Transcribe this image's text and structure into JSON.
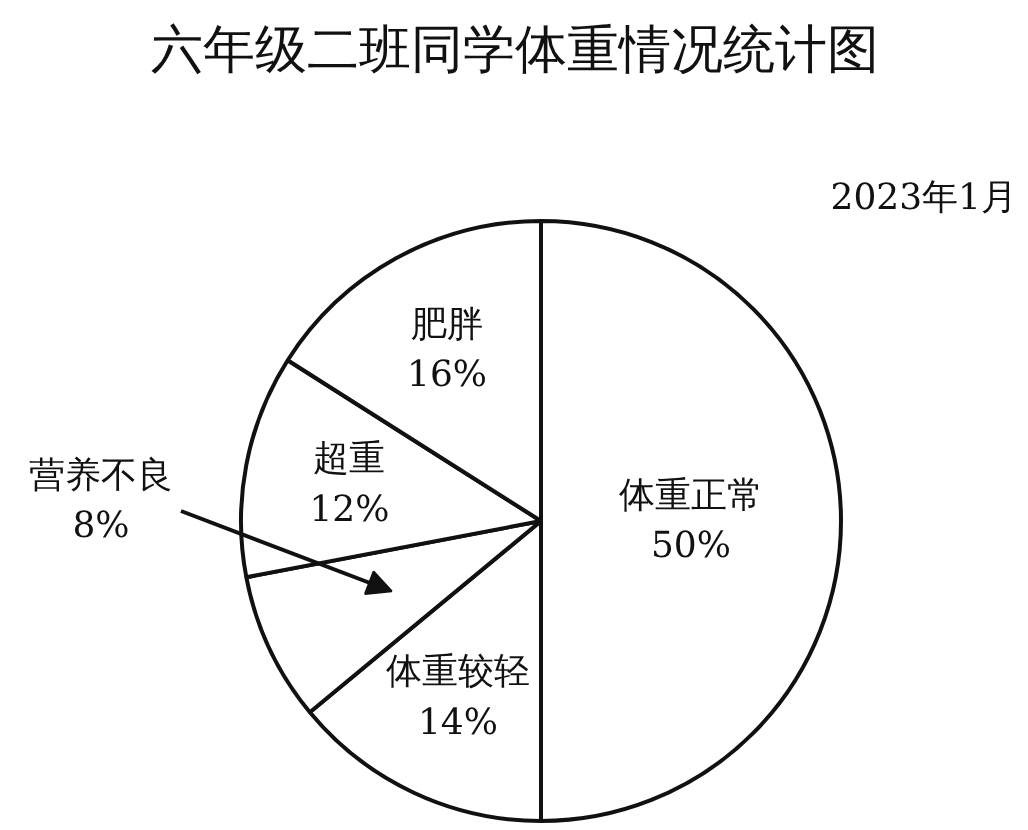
{
  "chart_data": {
    "type": "pie",
    "title": "六年级二班同学体重情况统计图",
    "annotations": [
      "2023年1月"
    ],
    "categories": [
      "体重正常",
      "体重较轻",
      "营养不良",
      "超重",
      "肥胖"
    ],
    "values": [
      50,
      14,
      8,
      12,
      16
    ],
    "colors": [
      "#ffffff",
      "#ffffff",
      "#ffffff",
      "#ffffff",
      "#ffffff"
    ],
    "value_labels": [
      "50%",
      "14%",
      "8%",
      "12%",
      "16%"
    ]
  }
}
